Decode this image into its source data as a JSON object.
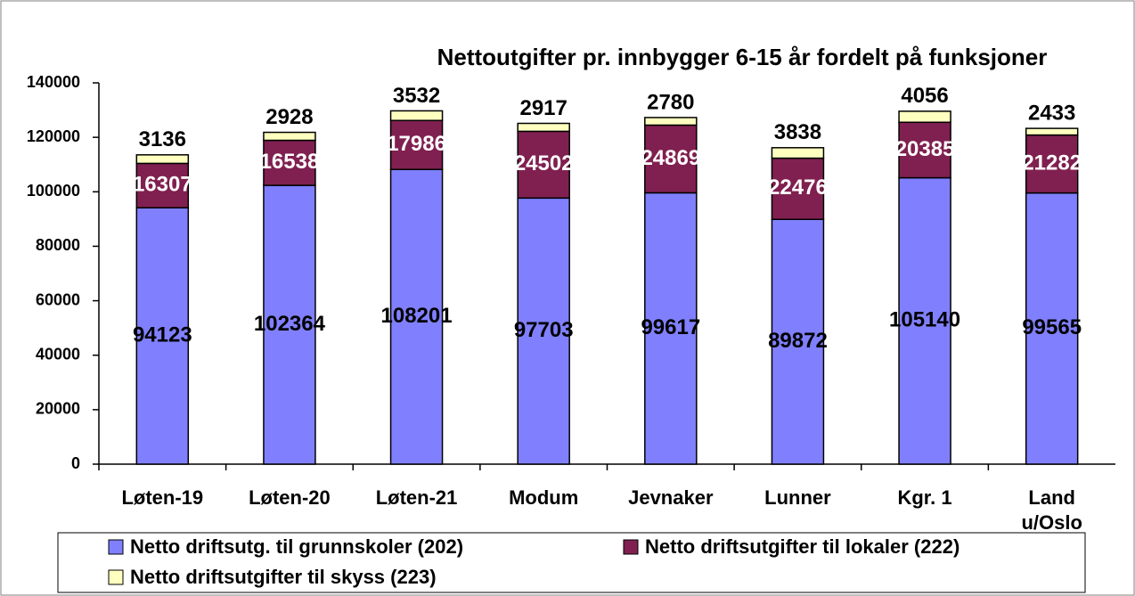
{
  "chart_data": {
    "type": "bar",
    "stacked": true,
    "title": "Nettoutgifter pr. innbygger 6-15 år fordelt på funksjoner",
    "categories": [
      "Løten-19",
      "Løten-20",
      "Løten-21",
      "Modum",
      "Jevnaker",
      "Lunner",
      "Kgr. 1",
      "Land u/Oslo"
    ],
    "series": [
      {
        "name": "Netto driftsutg. til grunnskoler (202)",
        "color": "#8080ff",
        "label_color": "#000000",
        "values": [
          94123,
          102364,
          108201,
          97703,
          99617,
          89872,
          105140,
          99565
        ]
      },
      {
        "name": "Netto driftsutgifter til lokaler (222)",
        "color": "#802050",
        "label_color": "#ffffff",
        "values": [
          16307,
          16538,
          17986,
          24502,
          24869,
          22476,
          20385,
          21282
        ]
      },
      {
        "name": "Netto driftsutgifter til skyss (223)",
        "color": "#ffffc0",
        "label_color": "#000000",
        "values": [
          3136,
          2928,
          3532,
          2917,
          2780,
          3838,
          4056,
          2433
        ]
      }
    ],
    "ylim": [
      0,
      140000
    ],
    "yticks": [
      0,
      20000,
      40000,
      60000,
      80000,
      100000,
      120000,
      140000
    ],
    "grid": false,
    "legend": "bottom"
  }
}
